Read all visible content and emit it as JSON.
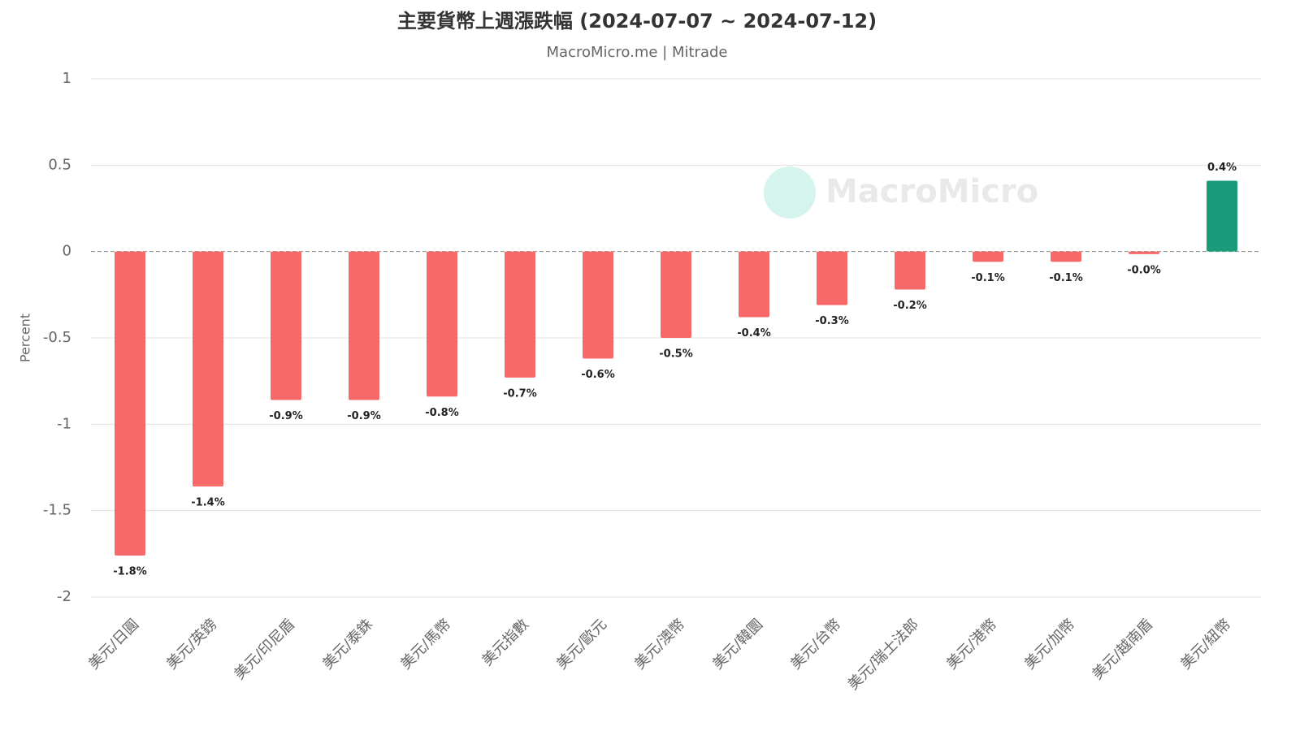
{
  "chart_data": {
    "type": "bar",
    "title": "主要貨幣上週漲跌幅 (2024-07-07 ~ 2024-07-12)",
    "subtitle": "MacroMicro.me | Mitrade",
    "watermark": "MacroMicro",
    "y_label": "Percent",
    "categories": [
      "美元/日圓",
      "美元/英鎊",
      "美元/印尼盾",
      "美元/泰銖",
      "美元/馬幣",
      "美元指數",
      "美元/歐元",
      "美元/澳幣",
      "美元/韓圜",
      "美元/台幣",
      "美元/瑞士法郎",
      "美元/港幣",
      "美元/加幣",
      "美元/越南盾",
      "美元/紐幣"
    ],
    "values": [
      -1.76,
      -1.36,
      -0.86,
      -0.86,
      -0.84,
      -0.73,
      -0.62,
      -0.5,
      -0.38,
      -0.31,
      -0.22,
      -0.06,
      -0.06,
      -0.015,
      0.41
    ],
    "value_labels": [
      "-1.8%",
      "-1.4%",
      "-0.9%",
      "-0.9%",
      "-0.8%",
      "-0.7%",
      "-0.6%",
      "-0.5%",
      "-0.4%",
      "-0.3%",
      "-0.2%",
      "-0.1%",
      "-0.1%",
      "-0.0%",
      "0.4%"
    ],
    "negative_color": "#f76868",
    "positive_color": "#1a9c7b",
    "ylim": [
      -2,
      1
    ],
    "yticks": [
      1,
      0.5,
      0,
      -0.5,
      -1,
      -1.5,
      -2
    ],
    "grid": true
  }
}
